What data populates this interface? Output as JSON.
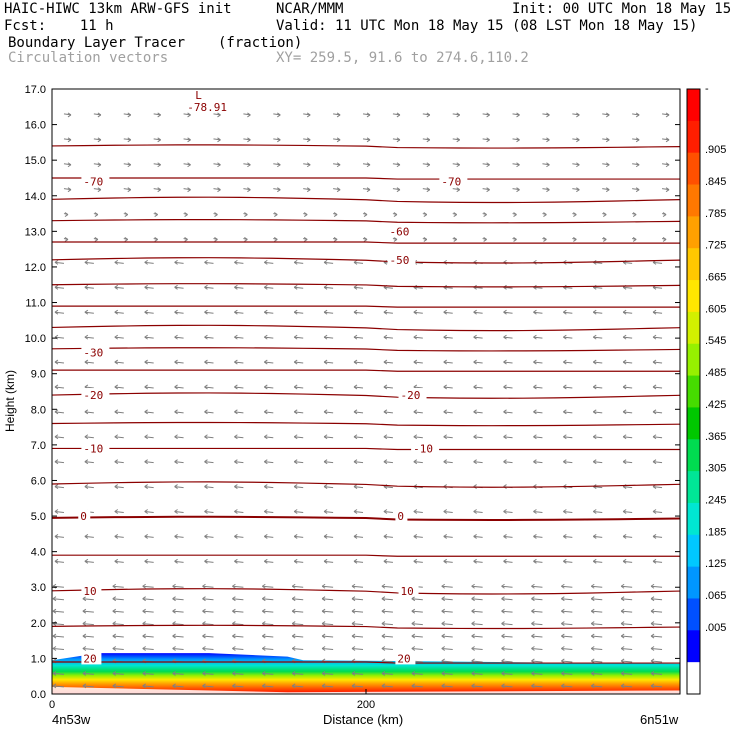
{
  "header": {
    "model": "HAIC-HIWC 13km ARW-GFS init",
    "org": "NCAR/MMM",
    "init": "Init: 00 UTC Mon 18 May 15",
    "fcst": "Fcst:    11 h",
    "valid": "Valid: 11 UTC Mon 18 May 15 (08 LST Mon 18 May 15)",
    "field": "Boundary Layer Tracer",
    "units": "(fraction)",
    "vectors": "Circulation vectors",
    "xy": "XY= 259.5, 91.6 to 274.6,110.2"
  },
  "colors": {
    "contour": "#8b0000",
    "vector": "#808080",
    "text": "#000000",
    "muted": "#a0a0a0",
    "palette": [
      "#ffffff",
      "#0000ff",
      "#0050ff",
      "#0096ff",
      "#00c8ff",
      "#00e6d2",
      "#00e696",
      "#00dc50",
      "#00c800",
      "#46dc00",
      "#96f000",
      "#d2f000",
      "#ffe600",
      "#ffc800",
      "#ffa000",
      "#ff7800",
      "#ff5000",
      "#ff1e00",
      "#ff0000"
    ]
  },
  "chart_data": {
    "type": "contour cross-section",
    "ylabel": "Height (km)",
    "xlabel": "Distance (km)",
    "ylim": [
      0,
      17
    ],
    "xlim": [
      0,
      400
    ],
    "y_ticks": [
      "0.0",
      "1.0",
      "2.0",
      "3.0",
      "4.0",
      "5.0",
      "6.0",
      "7.0",
      "8.0",
      "9.0",
      "10.0",
      "11.0",
      "12.0",
      "13.0",
      "14.0",
      "15.0",
      "16.0",
      "17.0"
    ],
    "x_ticks": [
      {
        "value": 0,
        "label": "0"
      },
      {
        "value": 200,
        "label": "200"
      }
    ],
    "x_endpoints": {
      "left": "4n53w",
      "right": "6n51w"
    },
    "temperature_contour_labels": [
      {
        "text": "20",
        "x": 20,
        "y": 1.0
      },
      {
        "text": "20",
        "x": 220,
        "y": 1.0
      },
      {
        "text": "10",
        "x": 20,
        "y": 2.9
      },
      {
        "text": "10",
        "x": 222,
        "y": 2.9
      },
      {
        "text": "0",
        "x": 18,
        "y": 5.0
      },
      {
        "text": "0",
        "x": 220,
        "y": 5.0
      },
      {
        "text": "-10",
        "x": 20,
        "y": 6.9
      },
      {
        "text": "-10",
        "x": 230,
        "y": 6.9
      },
      {
        "text": "-20",
        "x": 20,
        "y": 8.4
      },
      {
        "text": "-20",
        "x": 222,
        "y": 8.4
      },
      {
        "text": "-30",
        "x": 20,
        "y": 9.6
      },
      {
        "text": "-50",
        "x": 215,
        "y": 12.2
      },
      {
        "text": "-60",
        "x": 215,
        "y": 13.0
      },
      {
        "text": "-70",
        "x": 20,
        "y": 14.4
      },
      {
        "text": "-70",
        "x": 248,
        "y": 14.4
      }
    ],
    "min_label": {
      "marker": "L",
      "value": "-78.91",
      "x": 90,
      "y": 16.6
    },
    "contour_levels_km": [
      0.9,
      1.9,
      2.9,
      3.9,
      4.95,
      5.9,
      6.9,
      7.6,
      8.4,
      9.1,
      9.7,
      10.3,
      10.9,
      11.5,
      12.2,
      12.7,
      13.3,
      13.9,
      14.5,
      15.4
    ],
    "boundary_layer_profile": [
      {
        "x": 0,
        "top_km": 0.95
      },
      {
        "x": 30,
        "top_km": 1.15
      },
      {
        "x": 100,
        "top_km": 1.15
      },
      {
        "x": 150,
        "top_km": 1.05
      },
      {
        "x": 160,
        "top_km": 0.95
      },
      {
        "x": 400,
        "top_km": 0.85
      }
    ],
    "colorbar": {
      "labels": [
        "-",
        ".905",
        ".845",
        ".785",
        ".725",
        ".665",
        ".605",
        ".545",
        ".485",
        ".425",
        ".365",
        ".305",
        ".245",
        ".185",
        ".125",
        ".065",
        ".005"
      ]
    }
  }
}
